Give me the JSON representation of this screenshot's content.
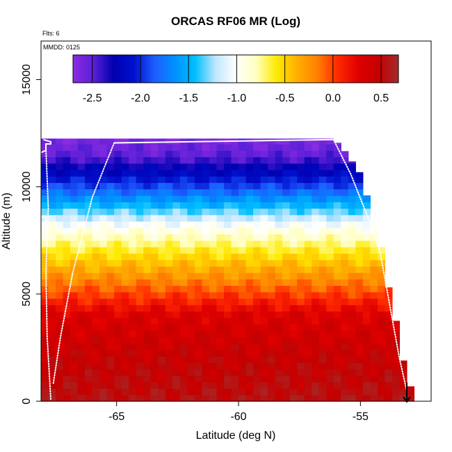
{
  "chart_data": {
    "type": "heatmap",
    "title": "ORCAS RF06 MR (Log)",
    "xlabel": "Latitude (deg N)",
    "ylabel": "Altitude (m)",
    "xlim": [
      -68.1,
      -52.1
    ],
    "ylim": [
      0,
      16800
    ],
    "xticks": [
      -65,
      -60,
      -55
    ],
    "yticks": [
      0,
      5000,
      10000,
      15000
    ],
    "annotations": {
      "flights": "Flts: 6",
      "date": "MMDD: 0125"
    },
    "colorbar": {
      "range": [
        -2.7,
        0.68
      ],
      "ticks": [
        -2.5,
        -2.0,
        -1.5,
        -1.0,
        -0.5,
        0.0,
        0.5
      ],
      "tick_labels": [
        "-2.5",
        "-2.0",
        "-1.5",
        "-1.0",
        "-0.5",
        "0.0",
        "0.5"
      ],
      "colors": [
        "#8a2be2",
        "#5a1fd6",
        "#0000b0",
        "#0010cc",
        "#1e5cff",
        "#0090ff",
        "#00bfff",
        "#bfe6ff",
        "#ffffff",
        "#ffffc0",
        "#ffea00",
        "#ffb000",
        "#ff8000",
        "#ff2a00",
        "#e00000",
        "#c40000",
        "#a52a2a"
      ]
    },
    "grid": {
      "lat_min": -68.1,
      "lat_step": 0.3,
      "n_cols": 51,
      "alt_step": 300,
      "profile_altitudes": [
        0,
        2000,
        4000,
        5000,
        6000,
        7000,
        7600,
        8200,
        8800,
        9400,
        10000,
        10600,
        11000,
        11400,
        12300
      ],
      "profile_values": [
        0.55,
        0.45,
        0.3,
        0.0,
        -0.3,
        -0.6,
        -0.8,
        -1.0,
        -1.3,
        -1.6,
        -1.9,
        -2.15,
        -2.3,
        -2.5,
        -2.65
      ],
      "top_altitude_profile": {
        "lats": [
          -68.1,
          -56.1,
          -55.6,
          -55.0,
          -54.6,
          -54.2,
          -53.8,
          -53.4,
          -53.1,
          -52.6
        ],
        "alts": [
          12250,
          12250,
          11600,
          10600,
          9000,
          7500,
          5000,
          3000,
          800,
          450
        ]
      }
    },
    "flight_tracks": [
      {
        "name": "track-1",
        "style": "solid",
        "lats": [
          -68.1,
          -67.9,
          -67.9,
          -67.7,
          -67.7,
          -68.0
        ],
        "alts": [
          11600,
          11700,
          12000,
          12000,
          12100,
          12200
        ]
      },
      {
        "name": "track-2",
        "style": "solid",
        "lats": [
          -68.1,
          -67.9,
          -67.9
        ],
        "alts": [
          8600,
          8600,
          7600
        ]
      },
      {
        "name": "track-3",
        "style": "solid",
        "lats": [
          -65.1,
          -56.1
        ],
        "alts": [
          12050,
          12200
        ]
      },
      {
        "name": "track-4",
        "style": "dotted",
        "lats": [
          -65.1,
          -66.0,
          -66.8,
          -67.3,
          -67.6
        ],
        "alts": [
          12050,
          9500,
          6000,
          3000,
          800
        ]
      },
      {
        "name": "track-5",
        "style": "dotted",
        "lats": [
          -56.1,
          -55.4,
          -54.7,
          -54.2,
          -53.8,
          -53.4,
          -53.1
        ],
        "alts": [
          12200,
          10600,
          8600,
          7000,
          4500,
          2000,
          500
        ]
      },
      {
        "name": "track-6",
        "style": "dotted",
        "lats": [
          -67.9,
          -67.8,
          -67.9,
          -67.85,
          -67.7
        ],
        "alts": [
          11800,
          9000,
          6000,
          3000,
          100
        ]
      }
    ],
    "marker": {
      "label": "arrow",
      "lat": -53.1,
      "alt": 300
    }
  }
}
